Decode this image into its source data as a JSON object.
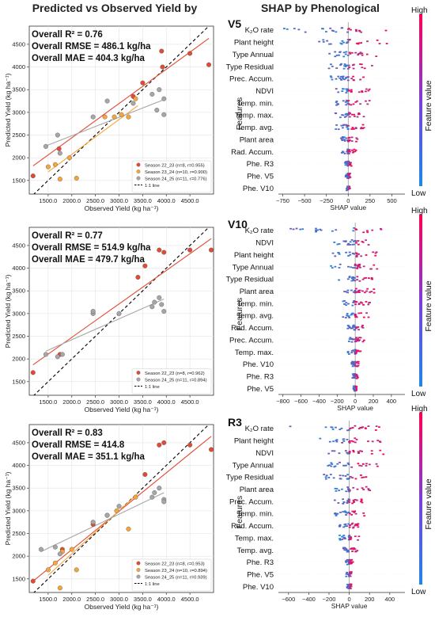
{
  "titles": {
    "left": "Predicted vs Observed Yield by",
    "right": "SHAP by Phenological"
  },
  "colors": {
    "season_22_23": "#e34a33",
    "season_23_24": "#f5a53a",
    "season_24_25": "#a6a6a6",
    "one_to_one": "#000000",
    "shap_low": "#1e88e5",
    "shap_high": "#ff0052"
  },
  "chart_data": [
    {
      "type": "scatter",
      "panel": "scatter-1",
      "stats": [
        "Overall R² = 0.76",
        "Overall RMSE = 486.1 kg/ha",
        "Overall MAE = 404.3 kg/ha"
      ],
      "xlabel": "Observed Yield (kg ha⁻¹)",
      "ylabel": "Predicted Yield (kg ha⁻¹)",
      "xlim": [
        1100,
        5000
      ],
      "ylim": [
        1200,
        4900
      ],
      "xticks": [
        1500,
        2000,
        2500,
        3000,
        3500,
        4000,
        4500
      ],
      "xtick_labels": [
        "1500.0",
        "2000.0",
        "2500.0",
        "3000.0",
        "3500.0",
        "4000.0",
        "4500.0"
      ],
      "yticks": [
        1500,
        2000,
        2500,
        3000,
        3500,
        4000,
        4500
      ],
      "grid": true,
      "legend_position": "lower-right",
      "series": [
        {
          "name": "Season 22_23 (n=8, r=0.955)",
          "color_key": "season_22_23",
          "x": [
            1180,
            1730,
            3500,
            3900,
            3920,
            4500,
            4900,
            3300
          ],
          "y": [
            1600,
            2200,
            3650,
            4350,
            4000,
            4300,
            4050,
            3350
          ],
          "fit": [
            [
              1180,
              1820
            ],
            [
              4900,
              4630
            ]
          ]
        },
        {
          "name": "Season 23_24 (n=10, r=0.900)",
          "color_key": "season_23_24",
          "x": [
            1500,
            1650,
            1750,
            1950,
            2100,
            2700,
            3050,
            3200,
            3350,
            2900
          ],
          "y": [
            1800,
            1850,
            1530,
            2000,
            1550,
            2900,
            2950,
            2900,
            3300,
            2900
          ],
          "fit": [
            [
              1500,
              1690
            ],
            [
              3400,
              3150
            ]
          ]
        },
        {
          "name": "Season 24_25 (n=11, r=0.776)",
          "color_key": "season_24_25",
          "x": [
            1450,
            1700,
            1750,
            2450,
            2750,
            3300,
            3700,
            3800,
            3850,
            3950,
            3950
          ],
          "y": [
            2250,
            2500,
            2100,
            2900,
            3250,
            3200,
            3400,
            3050,
            3500,
            3300,
            2950
          ],
          "fit": [
            [
              1450,
              2260
            ],
            [
              3950,
              3280
            ]
          ]
        }
      ],
      "reference_line": "1:1 line"
    },
    {
      "type": "scatter",
      "panel": "scatter-2",
      "stats": [
        "Overall R² = 0.77",
        "Overall RMSE = 514.9 kg/ha",
        "Overall MAE = 479.7 kg/ha"
      ],
      "xlabel": "Observed Yield (kg ha⁻¹)",
      "ylabel": "Predicted Yield (kg ha⁻¹)",
      "xlim": [
        1100,
        5000
      ],
      "ylim": [
        1200,
        4900
      ],
      "xticks": [
        1500,
        2000,
        2500,
        3000,
        3500,
        4000,
        4500
      ],
      "xtick_labels": [
        "1500.0",
        "2000.0",
        "2500.0",
        "3000.0",
        "3500.0",
        "4000.0",
        "4500.0"
      ],
      "yticks": [
        1500,
        2000,
        2500,
        3000,
        3500,
        4000,
        4500
      ],
      "grid": true,
      "legend_position": "lower-right",
      "series": [
        {
          "name": "Season 22_23 (n=8, r=0.962)",
          "color_key": "season_22_23",
          "x": [
            1180,
            1750,
            3400,
            3550,
            3850,
            3950,
            4500,
            4950
          ],
          "y": [
            1700,
            2100,
            3800,
            4050,
            4400,
            4350,
            4400,
            4400
          ],
          "fit": [
            [
              1180,
              1870
            ],
            [
              4950,
              4650
            ]
          ]
        },
        {
          "name": "Season 24_25 (n=11, r=0.894)",
          "color_key": "season_24_25",
          "x": [
            1450,
            1700,
            1800,
            2450,
            2450,
            3000,
            3700,
            3750,
            3850,
            3900,
            3950
          ],
          "y": [
            2100,
            2050,
            2100,
            3000,
            3050,
            3000,
            3150,
            3250,
            3350,
            3200,
            3050
          ],
          "fit": [
            [
              1450,
              2170
            ],
            [
              3950,
              3320
            ]
          ]
        }
      ],
      "reference_line": "1:1 line"
    },
    {
      "type": "scatter",
      "panel": "scatter-3",
      "stats": [
        "Overall R² = 0.83",
        "Overall RMSE = 414.8",
        "Overall MAE = 351.1 kg/ha"
      ],
      "xlabel": "Observed Yield (kg ha⁻¹)",
      "ylabel": "Predicted Yield (kg ha⁻¹)",
      "xlim": [
        1100,
        5000
      ],
      "ylim": [
        1200,
        4900
      ],
      "xticks": [
        1500,
        2000,
        2500,
        3000,
        3500,
        4000,
        4500
      ],
      "xtick_labels": [
        "1500.0",
        "2000.0",
        "2500.0",
        "3000.0",
        "3500.0",
        "4000.0",
        "4500.0"
      ],
      "yticks": [
        1500,
        2000,
        2500,
        3000,
        3500,
        4000,
        4500
      ],
      "grid": true,
      "legend_position": "lower-right",
      "series": [
        {
          "name": "Season 22_23 (n=8, r=0.953)",
          "color_key": "season_22_23",
          "x": [
            1180,
            1800,
            3550,
            3850,
            3950,
            4500,
            4950,
            2450
          ],
          "y": [
            1450,
            2150,
            3800,
            4450,
            4500,
            4450,
            4350,
            2700
          ],
          "fit": [
            [
              1180,
              1450
            ],
            [
              4950,
              4640
            ]
          ]
        },
        {
          "name": "Season 23_24 (n=10, r=0.894)",
          "color_key": "season_23_24",
          "x": [
            1500,
            1650,
            1750,
            2000,
            2100,
            2750,
            2950,
            3200,
            3350,
            1800
          ],
          "y": [
            1700,
            1850,
            1300,
            2150,
            1700,
            2900,
            3000,
            2600,
            3300,
            2100
          ],
          "fit": [
            [
              1500,
              1580
            ],
            [
              3400,
              3380
            ]
          ]
        },
        {
          "name": "Season 24_25 (n=11, r=0.939)",
          "color_key": "season_24_25",
          "x": [
            1350,
            1650,
            1750,
            2450,
            2750,
            3000,
            3700,
            3750,
            3850,
            3950,
            3950
          ],
          "y": [
            2150,
            2200,
            2050,
            2750,
            2900,
            3100,
            3300,
            3400,
            3500,
            3250,
            3200
          ],
          "fit": [
            [
              1350,
              2100
            ],
            [
              3950,
              3400
            ]
          ]
        }
      ],
      "reference_line": "1:1 line"
    },
    {
      "type": "scatter",
      "panel": "shap-1",
      "label": "V5",
      "subtitle": "",
      "ylabel": "Features",
      "xlabel": "SHAP value",
      "xlim": [
        -800,
        650
      ],
      "xticks": [
        -750,
        -500,
        -250,
        0,
        250,
        500
      ],
      "xtick_labels": [
        "−750",
        "−500",
        "−250",
        "0",
        "250",
        "500"
      ],
      "features": [
        "K₂O rate",
        "Plant height",
        "Type Annual",
        "Type Residual",
        "Prec. Accum.",
        "NDVI",
        "Temp. min.",
        "Temp. max.",
        "Temp. avg.",
        "Plant area",
        "Rad. Accum.",
        "Phe. R3",
        "Phe. V5",
        "Phe. V10"
      ],
      "spread": [
        [
          -750,
          550
        ],
        [
          -350,
          450
        ],
        [
          -250,
          350
        ],
        [
          -250,
          300
        ],
        [
          -200,
          250
        ],
        [
          -200,
          250
        ],
        [
          -150,
          250
        ],
        [
          -150,
          200
        ],
        [
          -150,
          200
        ],
        [
          -100,
          150
        ],
        [
          -80,
          120
        ],
        [
          -40,
          40
        ],
        [
          -30,
          30
        ],
        [
          -20,
          20
        ]
      ],
      "colorbar": {
        "label": "Feature value",
        "high": "High",
        "low": "Low"
      }
    },
    {
      "type": "scatter",
      "panel": "shap-2",
      "label": "V10",
      "ylabel": "Features",
      "xlabel": "SHAP value",
      "xlim": [
        -850,
        550
      ],
      "xticks": [
        -800,
        -600,
        -400,
        -200,
        0,
        200,
        400
      ],
      "xtick_labels": [
        "−800",
        "−600",
        "−400",
        "−200",
        "0",
        "200",
        "400"
      ],
      "features": [
        "K₂O rate",
        "NDVI",
        "Plant height",
        "Type Annual",
        "Type Residual",
        "Plant area",
        "Temp. min.",
        "Temp. avg.",
        "Rad. Accum.",
        "Prec. Accum.",
        "Temp. max.",
        "Phe. V10",
        "Phe. R3",
        "Phe. V5"
      ],
      "spread": [
        [
          -750,
          450
        ],
        [
          -350,
          350
        ],
        [
          -300,
          250
        ],
        [
          -300,
          250
        ],
        [
          -250,
          200
        ],
        [
          -200,
          250
        ],
        [
          -150,
          200
        ],
        [
          -150,
          150
        ],
        [
          -100,
          100
        ],
        [
          -100,
          100
        ],
        [
          -80,
          100
        ],
        [
          -40,
          40
        ],
        [
          -30,
          30
        ],
        [
          -20,
          20
        ]
      ],
      "colorbar": {
        "label": "Feature value",
        "high": "High",
        "low": "Low"
      }
    },
    {
      "type": "scatter",
      "panel": "shap-3",
      "label": "R3",
      "ylabel": "Features",
      "xlabel": "SHAP value",
      "xlim": [
        -700,
        550
      ],
      "xticks": [
        -600,
        -400,
        -200,
        0,
        200,
        400
      ],
      "xtick_labels": [
        "−600",
        "−400",
        "−200",
        "0",
        "200",
        "400"
      ],
      "features": [
        "K₂O rate",
        "Plant height",
        "NDVI",
        "Type Annual",
        "Type Residual",
        "Plant area",
        "Prec. Accum.",
        "Temp. min.",
        "Rad. Accum.",
        "Temp. max.",
        "Temp. avg.",
        "Phe. R3",
        "Phe. V5",
        "Phe. V10"
      ],
      "spread": [
        [
          -650,
          450
        ],
        [
          -300,
          450
        ],
        [
          -250,
          350
        ],
        [
          -250,
          300
        ],
        [
          -250,
          200
        ],
        [
          -200,
          250
        ],
        [
          -150,
          150
        ],
        [
          -150,
          150
        ],
        [
          -100,
          100
        ],
        [
          -100,
          100
        ],
        [
          -80,
          80
        ],
        [
          -40,
          40
        ],
        [
          -30,
          30
        ],
        [
          -20,
          20
        ]
      ],
      "colorbar": {
        "label": "Feature value",
        "high": "High",
        "low": "Low"
      }
    }
  ]
}
